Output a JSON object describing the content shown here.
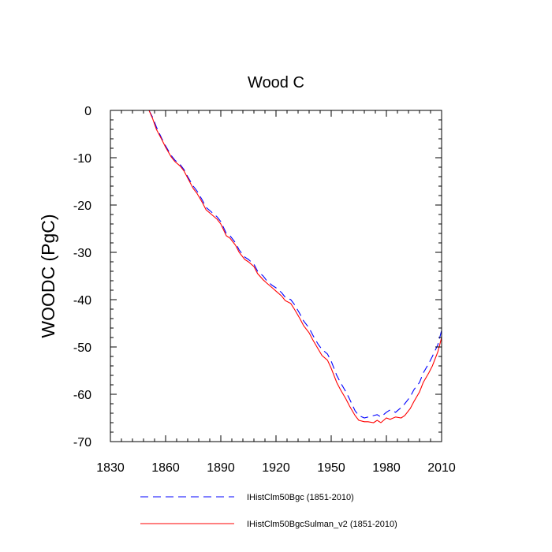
{
  "chart_data": {
    "type": "line",
    "title": "Wood C",
    "xlabel": "",
    "ylabel": "WOODC  (PgC)",
    "xlim": [
      1830,
      2010
    ],
    "ylim": [
      -70,
      0
    ],
    "xticks": [
      1830,
      1860,
      1890,
      1920,
      1950,
      1980,
      2010
    ],
    "yticks": [
      0,
      -10,
      -20,
      -30,
      -40,
      -50,
      -60,
      -70
    ],
    "grid": false,
    "legend_position": "bottom",
    "series": [
      {
        "name": "IHistClm50Bgc (1851-2010)",
        "color": "#0000ff",
        "style": "dashed",
        "x": [
          1851,
          1853,
          1855,
          1858,
          1860,
          1863,
          1865,
          1868,
          1870,
          1872,
          1875,
          1877,
          1880,
          1882,
          1885,
          1888,
          1890,
          1893,
          1895,
          1898,
          1900,
          1903,
          1905,
          1908,
          1910,
          1913,
          1915,
          1918,
          1920,
          1923,
          1925,
          1928,
          1930,
          1933,
          1935,
          1938,
          1940,
          1943,
          1945,
          1948,
          1950,
          1953,
          1955,
          1958,
          1960,
          1963,
          1965,
          1968,
          1970,
          1973,
          1975,
          1977,
          1980,
          1982,
          1985,
          1988,
          1990,
          1993,
          1995,
          1998,
          2000,
          2003,
          2005,
          2008,
          2010
        ],
        "y": [
          0,
          -1.5,
          -3.5,
          -6,
          -7.5,
          -9.5,
          -10.5,
          -11.5,
          -12.5,
          -14,
          -16,
          -17,
          -19,
          -20.5,
          -21.5,
          -22.5,
          -23.5,
          -26,
          -26.5,
          -28,
          -29.5,
          -31,
          -31.5,
          -32.5,
          -34,
          -35,
          -36,
          -37,
          -37.5,
          -38.5,
          -39.5,
          -40,
          -41,
          -43,
          -44.5,
          -46,
          -47.5,
          -49.5,
          -50.5,
          -51.5,
          -53,
          -56,
          -57.5,
          -59.5,
          -61,
          -63.5,
          -64.5,
          -65,
          -64.8,
          -64.5,
          -64.3,
          -64.8,
          -63.8,
          -63.3,
          -63.8,
          -62.8,
          -62,
          -60.5,
          -59,
          -57.5,
          -55.5,
          -53.5,
          -52,
          -49.5,
          -46.5
        ]
      },
      {
        "name": "IHistClm50BgcSulman_v2 (1851-2010)",
        "color": "#ff0000",
        "style": "solid",
        "x": [
          1851,
          1853,
          1855,
          1858,
          1860,
          1863,
          1865,
          1868,
          1870,
          1872,
          1875,
          1877,
          1880,
          1882,
          1885,
          1888,
          1890,
          1893,
          1895,
          1898,
          1900,
          1903,
          1905,
          1908,
          1910,
          1913,
          1915,
          1918,
          1920,
          1923,
          1925,
          1928,
          1930,
          1933,
          1935,
          1938,
          1940,
          1943,
          1945,
          1948,
          1950,
          1953,
          1955,
          1958,
          1960,
          1963,
          1965,
          1968,
          1970,
          1973,
          1975,
          1977,
          1980,
          1982,
          1985,
          1988,
          1990,
          1993,
          1995,
          1998,
          2000,
          2003,
          2005,
          2008,
          2010
        ],
        "y": [
          0,
          -1.8,
          -4,
          -6.2,
          -7.8,
          -9.8,
          -10.8,
          -11.8,
          -12.8,
          -14.3,
          -16.5,
          -17.5,
          -19.5,
          -21,
          -22,
          -23,
          -24,
          -26.5,
          -27,
          -28.5,
          -30,
          -31.5,
          -32,
          -33,
          -34.5,
          -35.8,
          -36.5,
          -37.5,
          -38.2,
          -39.2,
          -40.2,
          -40.8,
          -42,
          -44,
          -45.5,
          -47,
          -48.5,
          -50.5,
          -51.8,
          -52.8,
          -54.5,
          -57.5,
          -59,
          -61,
          -62.5,
          -64.5,
          -65.5,
          -65.8,
          -65.8,
          -66,
          -65.5,
          -66,
          -65,
          -65.3,
          -64.8,
          -65,
          -64.5,
          -63,
          -61.5,
          -59.5,
          -57.5,
          -55.5,
          -54,
          -51,
          -48
        ]
      }
    ]
  }
}
